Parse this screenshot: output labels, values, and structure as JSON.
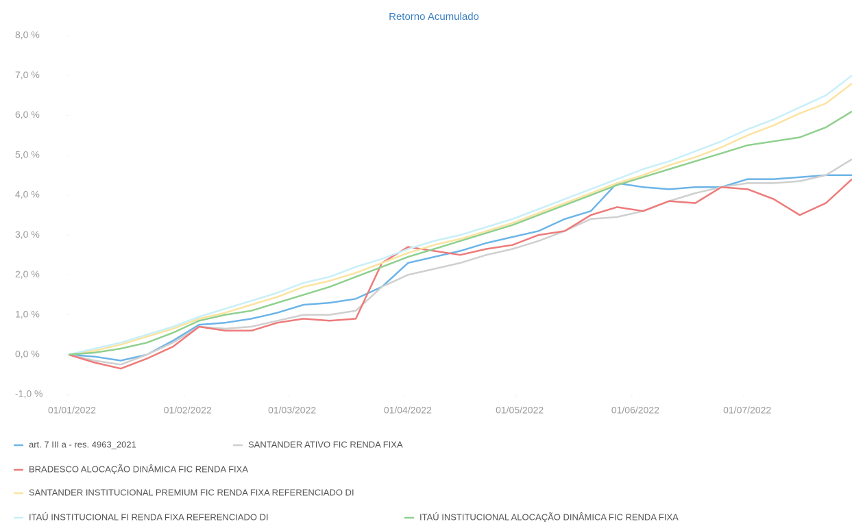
{
  "chart_data": {
    "type": "line",
    "title": "Retorno Acumulado",
    "x": [
      "01/01/2022",
      "08/01/2022",
      "15/01/2022",
      "22/01/2022",
      "29/01/2022",
      "05/02/2022",
      "12/02/2022",
      "19/02/2022",
      "26/02/2022",
      "05/03/2022",
      "12/03/2022",
      "19/03/2022",
      "26/03/2022",
      "02/04/2022",
      "09/04/2022",
      "16/04/2022",
      "23/04/2022",
      "30/04/2022",
      "07/05/2022",
      "14/05/2022",
      "21/05/2022",
      "28/05/2022",
      "04/06/2022",
      "11/06/2022",
      "18/06/2022",
      "25/06/2022",
      "02/07/2022",
      "09/07/2022",
      "16/07/2022",
      "23/07/2022",
      "30/07/2022"
    ],
    "xlim": [
      "01/01/2022",
      "30/07/2022"
    ],
    "xticks": [
      "01/01/2022",
      "01/02/2022",
      "01/03/2022",
      "01/04/2022",
      "01/05/2022",
      "01/06/2022",
      "01/07/2022"
    ],
    "ylim": [
      -1,
      8
    ],
    "yticks": [
      {
        "value": -1,
        "label": "-1,0 %"
      },
      {
        "value": 0,
        "label": "0,0 %"
      },
      {
        "value": 1,
        "label": "1,0 %"
      },
      {
        "value": 2,
        "label": "2,0 %"
      },
      {
        "value": 3,
        "label": "3,0 %"
      },
      {
        "value": 4,
        "label": "4,0 %"
      },
      {
        "value": 5,
        "label": "5,0 %"
      },
      {
        "value": 6,
        "label": "6,0 %"
      },
      {
        "value": 7,
        "label": "7,0 %"
      },
      {
        "value": 8,
        "label": "8,0 %"
      }
    ],
    "series": [
      {
        "name": "art. 7 III a - res. 4963_2021",
        "color": "#6cb4e8",
        "values": [
          0,
          -0.05,
          -0.15,
          0.0,
          0.35,
          0.75,
          0.8,
          0.9,
          1.05,
          1.25,
          1.3,
          1.4,
          1.7,
          2.3,
          2.45,
          2.6,
          2.8,
          2.95,
          3.1,
          3.4,
          3.6,
          4.3,
          4.2,
          4.15,
          4.2,
          4.2,
          4.4,
          4.4,
          4.45,
          4.5,
          4.5
        ]
      },
      {
        "name": "SANTANDER ATIVO FIC RENDA FIXA",
        "color": "#cfcfcf",
        "values": [
          0,
          -0.15,
          -0.25,
          0.0,
          0.3,
          0.7,
          0.65,
          0.7,
          0.85,
          1.0,
          1.0,
          1.1,
          1.7,
          2.0,
          2.15,
          2.3,
          2.5,
          2.65,
          2.85,
          3.1,
          3.4,
          3.45,
          3.6,
          3.85,
          4.05,
          4.2,
          4.3,
          4.3,
          4.35,
          4.5,
          4.9
        ]
      },
      {
        "name": "BRADESCO ALOCAÇÃO DINÂMICA FIC RENDA FIXA",
        "color": "#ee7a7a",
        "values": [
          0,
          -0.2,
          -0.35,
          -0.1,
          0.2,
          0.7,
          0.6,
          0.6,
          0.8,
          0.9,
          0.85,
          0.9,
          2.3,
          2.7,
          2.6,
          2.5,
          2.65,
          2.75,
          3.0,
          3.1,
          3.5,
          3.7,
          3.6,
          3.85,
          3.8,
          4.2,
          4.15,
          3.9,
          3.5,
          3.8,
          4.4
        ]
      },
      {
        "name": "SANTANDER INSTITUCIONAL PREMIUM FIC RENDA FIXA REFERENCIADO DI",
        "color": "#fbe3a0",
        "values": [
          0,
          0.1,
          0.25,
          0.45,
          0.65,
          0.9,
          1.05,
          1.25,
          1.45,
          1.7,
          1.85,
          2.05,
          2.3,
          2.55,
          2.75,
          2.9,
          3.1,
          3.3,
          3.55,
          3.8,
          4.05,
          4.3,
          4.5,
          4.75,
          4.95,
          5.2,
          5.5,
          5.75,
          6.05,
          6.3,
          6.8
        ]
      },
      {
        "name": "ITAÚ INSTITUCIONAL FI RENDA FIXA REFERENCIADO DI",
        "color": "#c8eff8",
        "values": [
          0,
          0.15,
          0.3,
          0.5,
          0.7,
          0.95,
          1.15,
          1.35,
          1.55,
          1.8,
          1.95,
          2.2,
          2.4,
          2.65,
          2.85,
          3.0,
          3.2,
          3.4,
          3.65,
          3.9,
          4.15,
          4.4,
          4.65,
          4.85,
          5.1,
          5.35,
          5.65,
          5.9,
          6.2,
          6.5,
          7.0
        ]
      },
      {
        "name": "ITAÚ INSTITUCIONAL ALOCAÇÃO DINÂMICA FIC RENDA FIXA",
        "color": "#8fd08f",
        "values": [
          0,
          0.05,
          0.15,
          0.3,
          0.55,
          0.85,
          1.0,
          1.1,
          1.3,
          1.5,
          1.7,
          1.95,
          2.2,
          2.45,
          2.65,
          2.85,
          3.05,
          3.25,
          3.5,
          3.75,
          4.0,
          4.25,
          4.45,
          4.65,
          4.85,
          5.05,
          5.25,
          5.35,
          5.45,
          5.7,
          6.1
        ]
      }
    ]
  }
}
